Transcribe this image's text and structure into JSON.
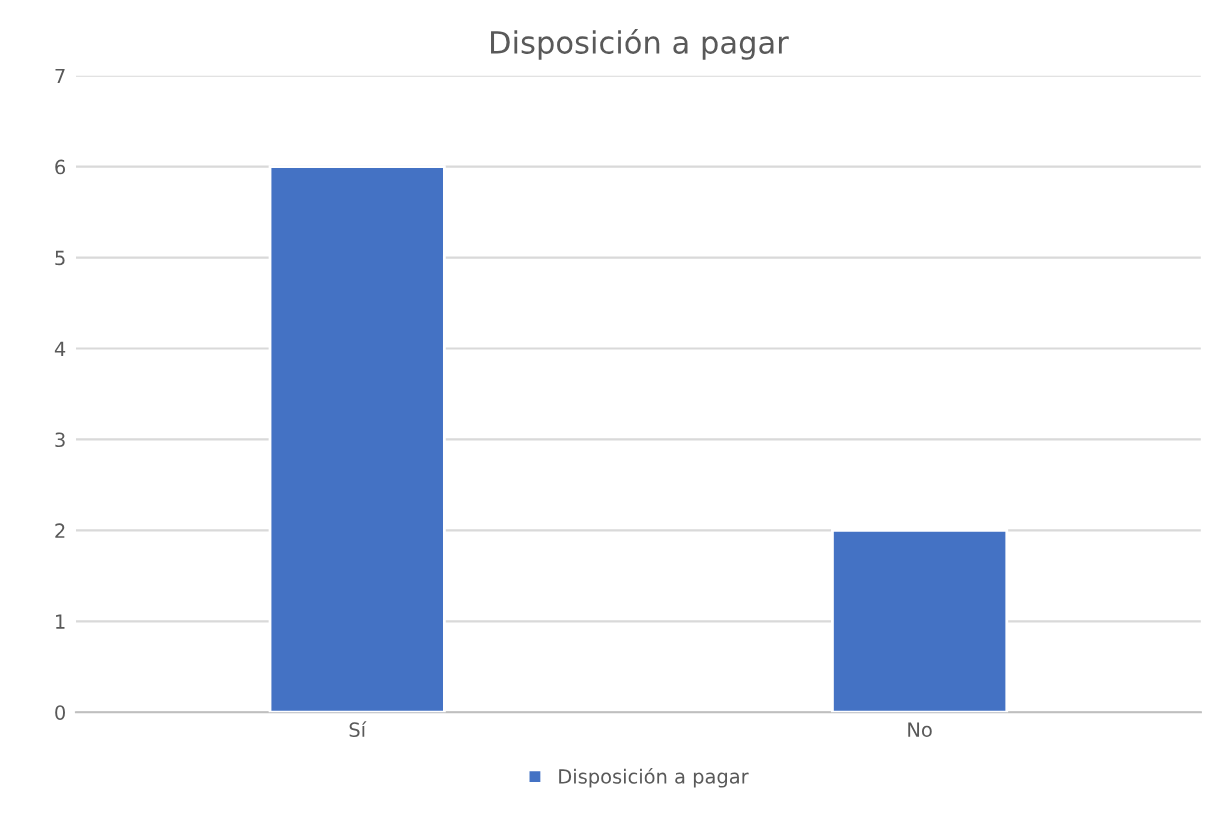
{
  "chart_data": {
    "type": "bar",
    "title": "Disposición a pagar",
    "categories": [
      "Sí",
      "No"
    ],
    "series": [
      {
        "name": "Disposición a pagar",
        "color": "#4472c4",
        "values": [
          6,
          2
        ]
      }
    ],
    "ylim": [
      0,
      7
    ],
    "yticks": [
      0,
      1,
      2,
      3,
      4,
      5,
      6,
      7
    ],
    "grid": "y",
    "legend": "bottom"
  }
}
